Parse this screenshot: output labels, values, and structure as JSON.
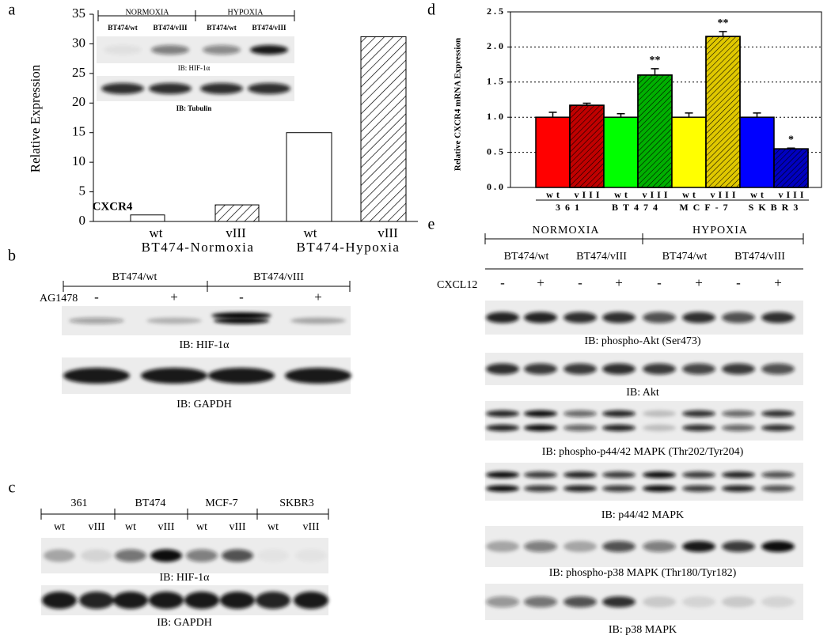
{
  "chart_data": [
    {
      "type": "bar",
      "panel": "a",
      "ylabel": "Relative Expression",
      "annotation": "CXCR4",
      "categories": [
        "wt",
        "vIII",
        "wt",
        "vIII"
      ],
      "group_labels": [
        "BT474-Normoxia",
        "BT474-Hypoxia"
      ],
      "values": [
        1.1,
        2.8,
        15,
        31.2
      ],
      "hatched": [
        false,
        true,
        false,
        true
      ],
      "color": "#ffffff",
      "ylim": [
        0,
        35
      ],
      "yticks": [
        0,
        5,
        10,
        15,
        20,
        25,
        30,
        35
      ],
      "inset": {
        "conditions": [
          "NORMOXIA",
          "HYPOXIA"
        ],
        "lanes": [
          "BT474/wt",
          "BT474/vIII",
          "BT474/wt",
          "BT474/vIII"
        ],
        "blots": [
          "IB: HIF-1α",
          "IB: Tubulin"
        ]
      }
    },
    {
      "type": "bar",
      "panel": "d",
      "ylabel": "Relative CXCR4 mRNA Expression",
      "categories": [
        "wt",
        "vIII",
        "wt",
        "vIII",
        "wt",
        "vIII",
        "wt",
        "vIII"
      ],
      "group_labels": [
        "361",
        "BT474",
        "MCF-7",
        "SKBR3"
      ],
      "values": [
        1.0,
        1.17,
        1.0,
        1.6,
        1.0,
        2.15,
        1.0,
        0.55
      ],
      "errors": [
        0.07,
        0.03,
        0.05,
        0.09,
        0.06,
        0.07,
        0.06,
        0.01
      ],
      "significance": [
        null,
        null,
        null,
        "**",
        null,
        "**",
        null,
        "*"
      ],
      "colors": [
        "#ff0000",
        "#c00000",
        "#00ff00",
        "#00b000",
        "#ffff00",
        "#e0c800",
        "#0000ff",
        "#0000c0"
      ],
      "hatched": [
        false,
        true,
        false,
        true,
        false,
        true,
        false,
        true
      ],
      "grid": true,
      "ylim": [
        0,
        2.5
      ],
      "yticks": [
        {
          "value": 0,
          "label": "0.0"
        },
        {
          "value": 0.5,
          "label": "0.5"
        },
        {
          "value": 1,
          "label": "1.0"
        },
        {
          "value": 1.5,
          "label": "1.5"
        },
        {
          "value": 2,
          "label": "2.0"
        },
        {
          "value": 2.5,
          "label": "2.5"
        }
      ]
    }
  ],
  "panel_b": {
    "panel": "b",
    "header": [
      "BT474/wt",
      "BT474/vIII"
    ],
    "treatment_label": "AG1478",
    "treatment": [
      "-",
      "+",
      "-",
      "+"
    ],
    "blots": [
      "IB: HIF-1α",
      "IB: GAPDH"
    ]
  },
  "panel_c": {
    "panel": "c",
    "header": [
      "361",
      "BT474",
      "MCF-7",
      "SKBR3"
    ],
    "lanes": [
      "wt",
      "vIII",
      "wt",
      "vIII",
      "wt",
      "vIII",
      "wt",
      "vIII"
    ],
    "blots": [
      "IB: HIF-1α",
      "IB: GAPDH"
    ]
  },
  "panel_e": {
    "panel": "e",
    "conditions": [
      "NORMOXIA",
      "HYPOXIA"
    ],
    "lines": [
      "BT474/wt",
      "BT474/vIII",
      "BT474/wt",
      "BT474/vIII"
    ],
    "treatment_label": "CXCL12",
    "treatment": [
      "-",
      "+",
      "-",
      "+",
      "-",
      "+",
      "-",
      "+"
    ],
    "blots": [
      "IB: phospho-Akt (Ser473)",
      "IB: Akt",
      "IB: phospho-p44/42 MAPK (Thr202/Tyr204)",
      "IB: p44/42 MAPK",
      "IB: phospho-p38 MAPK (Thr180/Tyr182)",
      "IB: p38 MAPK"
    ]
  }
}
